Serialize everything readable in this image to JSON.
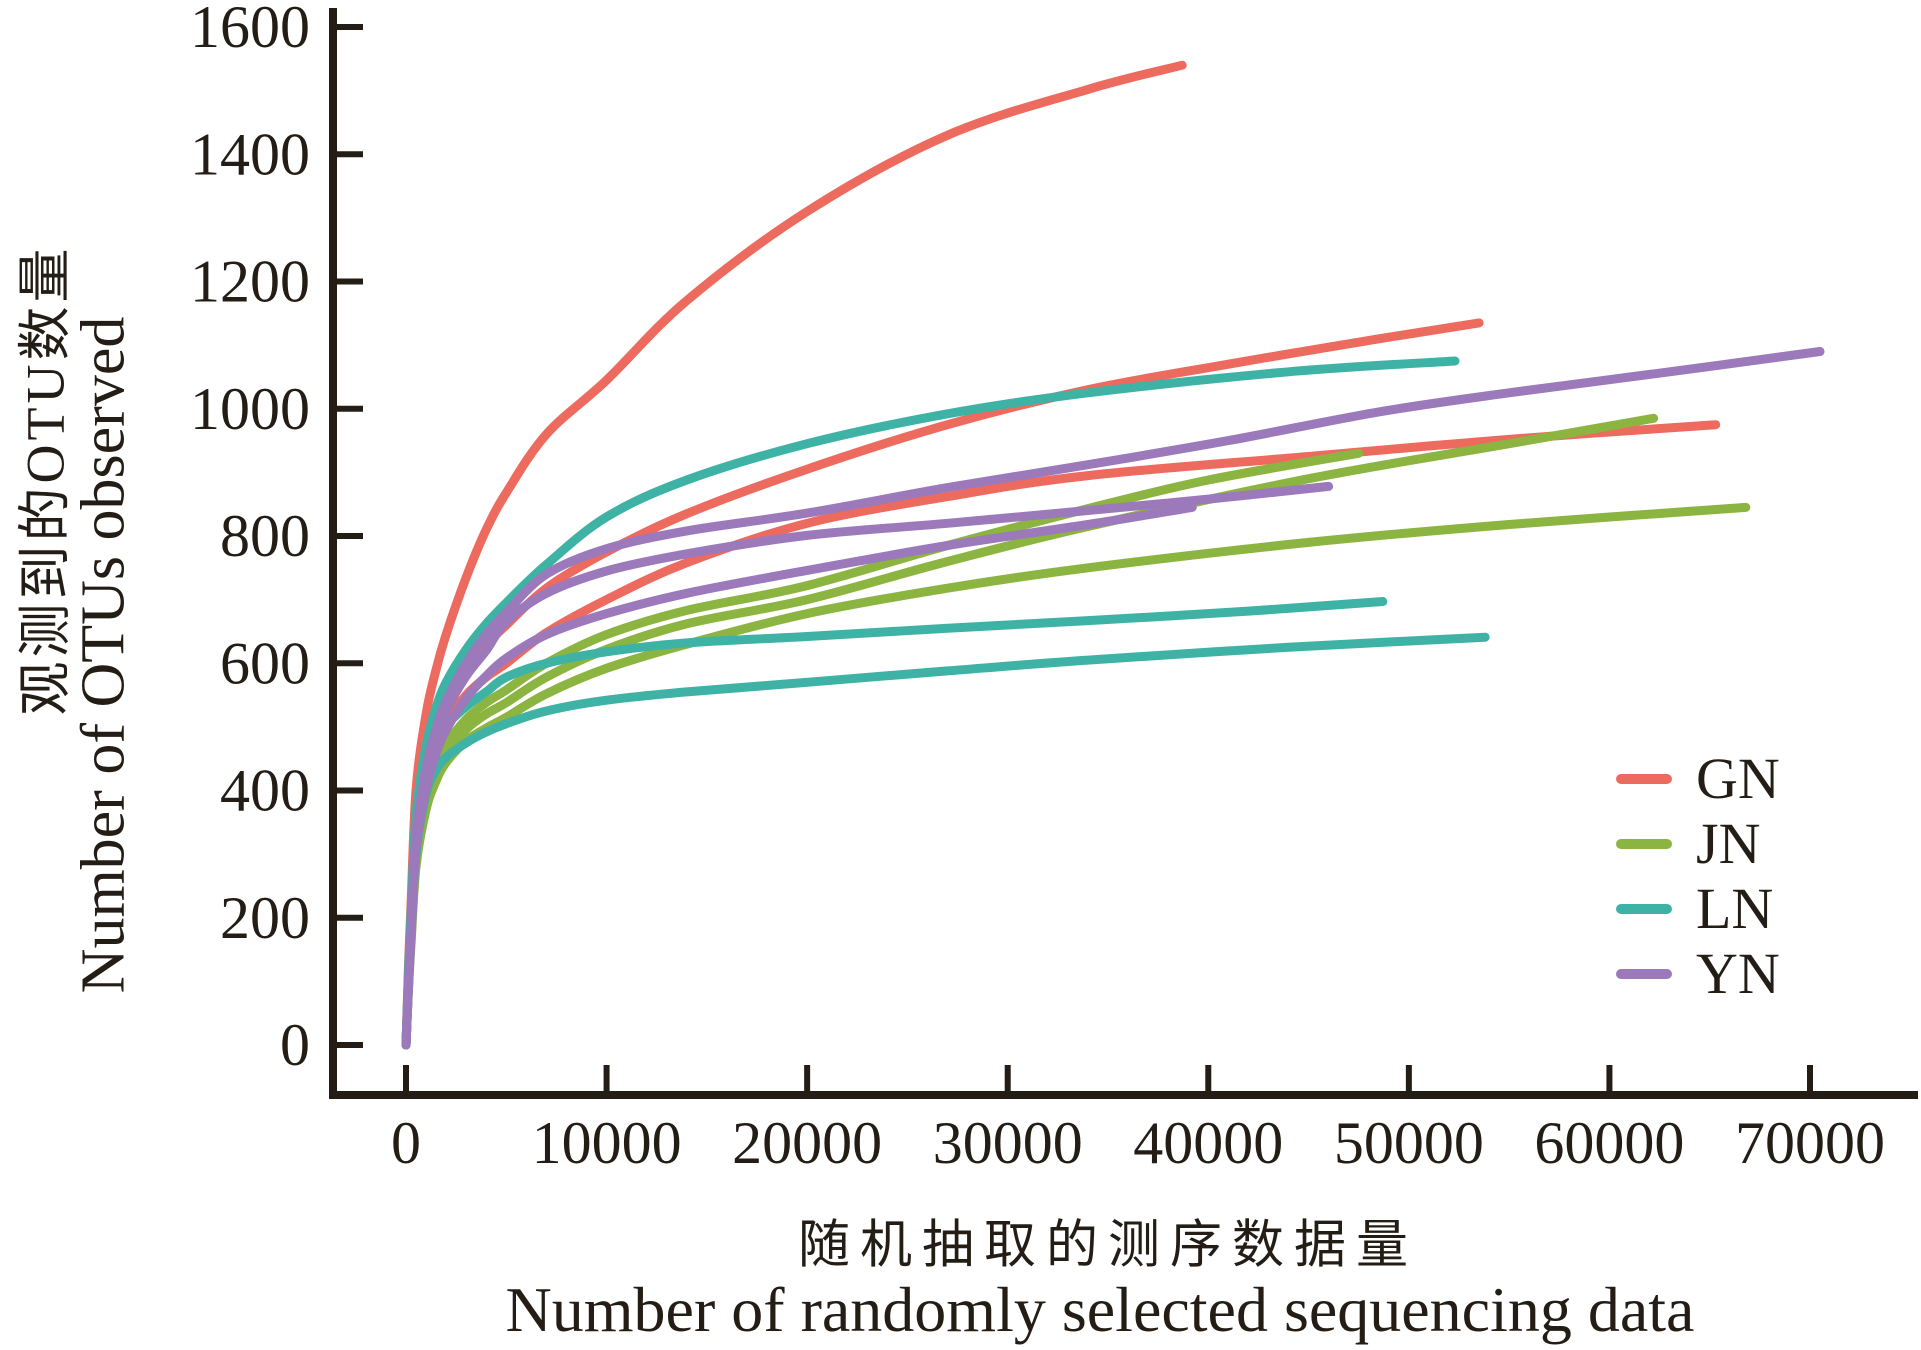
{
  "colors": {
    "ink": "#241d15",
    "gn": "#ed6a5f",
    "jn": "#8cb440",
    "ln": "#3fb2a6",
    "yn": "#9b79bb"
  },
  "legend": {
    "items": [
      {
        "label": "GN",
        "color": "#ed6a5f"
      },
      {
        "label": "JN",
        "color": "#8cb440"
      },
      {
        "label": "LN",
        "color": "#3fb2a6"
      },
      {
        "label": "YN",
        "color": "#9b79bb"
      }
    ]
  },
  "chart_data": {
    "type": "line",
    "title": "",
    "xlabel_zh": "随机抽取的测序数据量",
    "xlabel_en": "Number of randomly selected sequencing data",
    "ylabel_zh": "观测到的OTU数量",
    "ylabel_en": "Number of OTUs observed",
    "xlim": [
      0,
      70000
    ],
    "ylim": [
      0,
      1600
    ],
    "x_ticks": [
      0,
      10000,
      20000,
      30000,
      40000,
      50000,
      60000,
      70000
    ],
    "y_ticks": [
      0,
      200,
      400,
      600,
      800,
      1000,
      1200,
      1400,
      1600
    ],
    "grid": false,
    "legend_position": "right-middle",
    "series": [
      {
        "id": "GN-1",
        "group": "GN",
        "color": "#ed6a5f",
        "points": [
          [
            0,
            0
          ],
          [
            120,
            120
          ],
          [
            250,
            220
          ],
          [
            500,
            400
          ],
          [
            1000,
            520
          ],
          [
            1500,
            590
          ],
          [
            2000,
            645
          ],
          [
            3000,
            735
          ],
          [
            4000,
            810
          ],
          [
            5000,
            868
          ],
          [
            7000,
            960
          ],
          [
            10000,
            1045
          ],
          [
            14000,
            1170
          ],
          [
            20000,
            1310
          ],
          [
            27000,
            1430
          ],
          [
            34000,
            1502
          ],
          [
            38700,
            1540
          ]
        ]
      },
      {
        "id": "GN-2",
        "group": "GN",
        "color": "#ed6a5f",
        "points": [
          [
            0,
            0
          ],
          [
            120,
            105
          ],
          [
            250,
            195
          ],
          [
            500,
            345
          ],
          [
            1000,
            450
          ],
          [
            1500,
            505
          ],
          [
            2000,
            545
          ],
          [
            3000,
            595
          ],
          [
            4000,
            630
          ],
          [
            5000,
            660
          ],
          [
            7000,
            718
          ],
          [
            10000,
            775
          ],
          [
            14000,
            835
          ],
          [
            20000,
            905
          ],
          [
            27000,
            975
          ],
          [
            34000,
            1030
          ],
          [
            41000,
            1070
          ],
          [
            48500,
            1110
          ],
          [
            53500,
            1135
          ]
        ]
      },
      {
        "id": "GN-3",
        "group": "GN",
        "color": "#ed6a5f",
        "points": [
          [
            0,
            0
          ],
          [
            120,
            100
          ],
          [
            250,
            185
          ],
          [
            500,
            320
          ],
          [
            1000,
            420
          ],
          [
            1500,
            470
          ],
          [
            2000,
            505
          ],
          [
            3000,
            550
          ],
          [
            4000,
            578
          ],
          [
            5000,
            600
          ],
          [
            7000,
            648
          ],
          [
            10000,
            700
          ],
          [
            14000,
            758
          ],
          [
            20000,
            820
          ],
          [
            27000,
            862
          ],
          [
            34000,
            895
          ],
          [
            45000,
            925
          ],
          [
            55000,
            952
          ],
          [
            65300,
            975
          ]
        ]
      },
      {
        "id": "JN-1",
        "group": "JN",
        "color": "#8cb440",
        "points": [
          [
            0,
            0
          ],
          [
            120,
            90
          ],
          [
            250,
            170
          ],
          [
            500,
            295
          ],
          [
            1000,
            390
          ],
          [
            1500,
            440
          ],
          [
            2000,
            472
          ],
          [
            3000,
            512
          ],
          [
            4000,
            538
          ],
          [
            5000,
            558
          ],
          [
            7000,
            600
          ],
          [
            10000,
            645
          ],
          [
            14000,
            683
          ],
          [
            20000,
            722
          ],
          [
            27000,
            785
          ],
          [
            34000,
            843
          ],
          [
            40000,
            888
          ],
          [
            47500,
            930
          ]
        ]
      },
      {
        "id": "JN-2",
        "group": "JN",
        "color": "#8cb440",
        "points": [
          [
            0,
            0
          ],
          [
            120,
            88
          ],
          [
            250,
            165
          ],
          [
            500,
            288
          ],
          [
            1000,
            380
          ],
          [
            1500,
            428
          ],
          [
            2000,
            458
          ],
          [
            3000,
            496
          ],
          [
            4000,
            520
          ],
          [
            5000,
            538
          ],
          [
            7000,
            578
          ],
          [
            10000,
            622
          ],
          [
            14000,
            662
          ],
          [
            20000,
            700
          ],
          [
            27000,
            760
          ],
          [
            34000,
            815
          ],
          [
            45000,
            890
          ],
          [
            55000,
            945
          ],
          [
            62200,
            985
          ]
        ]
      },
      {
        "id": "JN-3",
        "group": "JN",
        "color": "#8cb440",
        "points": [
          [
            0,
            0
          ],
          [
            120,
            85
          ],
          [
            250,
            158
          ],
          [
            500,
            280
          ],
          [
            1000,
            370
          ],
          [
            1500,
            415
          ],
          [
            2000,
            444
          ],
          [
            3000,
            478
          ],
          [
            4000,
            498
          ],
          [
            5000,
            515
          ],
          [
            7000,
            552
          ],
          [
            10000,
            592
          ],
          [
            14000,
            630
          ],
          [
            20000,
            678
          ],
          [
            27000,
            718
          ],
          [
            34000,
            750
          ],
          [
            45000,
            790
          ],
          [
            55000,
            818
          ],
          [
            66800,
            845
          ]
        ]
      },
      {
        "id": "LN-1",
        "group": "LN",
        "color": "#3fb2a6",
        "points": [
          [
            0,
            0
          ],
          [
            120,
            110
          ],
          [
            250,
            205
          ],
          [
            500,
            360
          ],
          [
            1000,
            470
          ],
          [
            1500,
            530
          ],
          [
            2000,
            570
          ],
          [
            3000,
            622
          ],
          [
            4000,
            662
          ],
          [
            5000,
            695
          ],
          [
            7000,
            755
          ],
          [
            10000,
            830
          ],
          [
            14000,
            888
          ],
          [
            20000,
            945
          ],
          [
            27000,
            992
          ],
          [
            34000,
            1025
          ],
          [
            44000,
            1058
          ],
          [
            52300,
            1075
          ]
        ]
      },
      {
        "id": "LN-2",
        "group": "LN",
        "color": "#3fb2a6",
        "points": [
          [
            0,
            0
          ],
          [
            120,
            105
          ],
          [
            250,
            195
          ],
          [
            500,
            330
          ],
          [
            1000,
            430
          ],
          [
            1500,
            475
          ],
          [
            2000,
            502
          ],
          [
            3000,
            532
          ],
          [
            4000,
            555
          ],
          [
            5000,
            578
          ],
          [
            7000,
            600
          ],
          [
            10000,
            618
          ],
          [
            14000,
            632
          ],
          [
            20000,
            642
          ],
          [
            27000,
            655
          ],
          [
            34000,
            667
          ],
          [
            42000,
            682
          ],
          [
            48700,
            697
          ]
        ]
      },
      {
        "id": "LN-3",
        "group": "LN",
        "color": "#3fb2a6",
        "points": [
          [
            0,
            0
          ],
          [
            120,
            95
          ],
          [
            250,
            175
          ],
          [
            500,
            300
          ],
          [
            1000,
            395
          ],
          [
            1500,
            432
          ],
          [
            2000,
            452
          ],
          [
            3000,
            475
          ],
          [
            4000,
            492
          ],
          [
            5000,
            505
          ],
          [
            7000,
            525
          ],
          [
            10000,
            542
          ],
          [
            14000,
            555
          ],
          [
            20000,
            570
          ],
          [
            27000,
            588
          ],
          [
            34000,
            605
          ],
          [
            44000,
            625
          ],
          [
            53800,
            641
          ]
        ]
      },
      {
        "id": "YN-1",
        "group": "YN",
        "color": "#9b79bb",
        "points": [
          [
            0,
            0
          ],
          [
            120,
            95
          ],
          [
            250,
            180
          ],
          [
            500,
            330
          ],
          [
            1000,
            435
          ],
          [
            1500,
            497
          ],
          [
            2000,
            540
          ],
          [
            3000,
            600
          ],
          [
            4000,
            645
          ],
          [
            5000,
            680
          ],
          [
            7000,
            740
          ],
          [
            10000,
            780
          ],
          [
            14000,
            808
          ],
          [
            20000,
            836
          ],
          [
            27000,
            876
          ],
          [
            34000,
            912
          ],
          [
            41000,
            950
          ],
          [
            48500,
            995
          ],
          [
            55000,
            1025
          ],
          [
            63000,
            1058
          ],
          [
            70500,
            1090
          ]
        ]
      },
      {
        "id": "YN-2",
        "group": "YN",
        "color": "#9b79bb",
        "points": [
          [
            0,
            0
          ],
          [
            120,
            92
          ],
          [
            250,
            175
          ],
          [
            500,
            325
          ],
          [
            1000,
            425
          ],
          [
            1500,
            485
          ],
          [
            2000,
            525
          ],
          [
            3000,
            580
          ],
          [
            4000,
            620
          ],
          [
            5000,
            665
          ],
          [
            7000,
            710
          ],
          [
            10000,
            745
          ],
          [
            14000,
            772
          ],
          [
            20000,
            801
          ],
          [
            27000,
            820
          ],
          [
            34000,
            840
          ],
          [
            40000,
            858
          ],
          [
            46000,
            878
          ]
        ]
      },
      {
        "id": "YN-3",
        "group": "YN",
        "color": "#9b79bb",
        "points": [
          [
            0,
            0
          ],
          [
            120,
            88
          ],
          [
            250,
            168
          ],
          [
            500,
            308
          ],
          [
            1000,
            402
          ],
          [
            1500,
            458
          ],
          [
            2000,
            495
          ],
          [
            3000,
            545
          ],
          [
            4000,
            580
          ],
          [
            5000,
            608
          ],
          [
            7000,
            645
          ],
          [
            10000,
            678
          ],
          [
            14000,
            710
          ],
          [
            20000,
            746
          ],
          [
            27000,
            785
          ],
          [
            34000,
            818
          ],
          [
            39200,
            845
          ]
        ]
      }
    ]
  }
}
